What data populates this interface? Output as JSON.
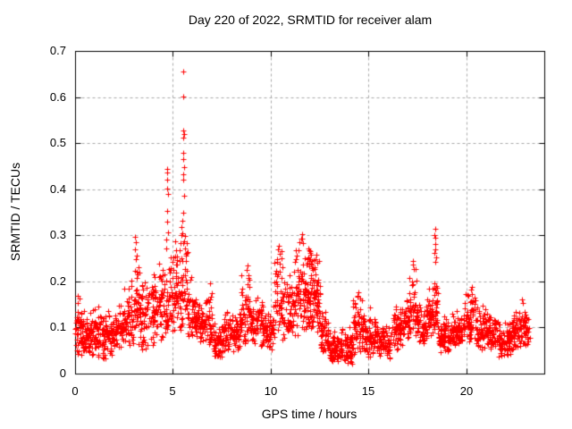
{
  "chart_data": {
    "type": "scatter",
    "title": "Day 220 of 2022, SRMTID for receiver alam",
    "xlabel": "GPS time / hours",
    "ylabel": "SRMTID / TECUs",
    "xlim": [
      0,
      24
    ],
    "ylim": [
      0,
      0.7
    ],
    "xticks": [
      0,
      5,
      10,
      15,
      20
    ],
    "xticklabels": [
      "0",
      "5",
      "10",
      "15",
      "20"
    ],
    "yticks": [
      0,
      0.1,
      0.2,
      0.3,
      0.4,
      0.5,
      0.6,
      0.7
    ],
    "yticklabels": [
      "0",
      "0.1",
      "0.2",
      "0.3",
      "0.4",
      "0.5",
      "0.6",
      "0.7"
    ],
    "grid": true,
    "grid_style": "dashed",
    "grid_color": "#a8a8a8",
    "border_color": "#000000",
    "background_color": "#ffffff",
    "legend": "none",
    "marker": "plus",
    "marker_color": "#ff0000",
    "marker_size_px": 7,
    "x_data_range": [
      0,
      23.25
    ],
    "notable_peaks": [
      {
        "t": 5.5,
        "v": 0.655
      },
      {
        "t": 18.4,
        "v": 0.315
      },
      {
        "t": 11.6,
        "v": 0.303
      },
      {
        "t": 3.1,
        "v": 0.296
      },
      {
        "t": 10.4,
        "v": 0.278
      },
      {
        "t": 12.0,
        "v": 0.272
      },
      {
        "t": 4.7,
        "v": 0.445
      },
      {
        "t": 17.3,
        "v": 0.245
      },
      {
        "t": 8.8,
        "v": 0.235
      }
    ],
    "seed": 20220811,
    "clusters": [
      [
        0.0,
        0.5,
        60,
        0.04,
        0.165
      ],
      [
        0.5,
        1.0,
        60,
        0.035,
        0.155
      ],
      [
        1.0,
        1.5,
        55,
        0.03,
        0.15
      ],
      [
        1.5,
        2.0,
        55,
        0.03,
        0.15
      ],
      [
        2.0,
        2.5,
        55,
        0.045,
        0.16
      ],
      [
        2.5,
        3.0,
        55,
        0.05,
        0.2
      ],
      [
        3.0,
        3.3,
        40,
        0.06,
        0.25
      ],
      [
        3.3,
        3.7,
        45,
        0.05,
        0.21
      ],
      [
        3.7,
        4.2,
        55,
        0.06,
        0.235
      ],
      [
        4.2,
        4.7,
        55,
        0.07,
        0.25
      ],
      [
        4.7,
        5.1,
        48,
        0.08,
        0.27
      ],
      [
        5.1,
        5.45,
        42,
        0.09,
        0.3
      ],
      [
        5.45,
        5.75,
        34,
        0.1,
        0.3
      ],
      [
        5.75,
        6.2,
        50,
        0.07,
        0.21
      ],
      [
        6.2,
        6.7,
        55,
        0.06,
        0.175
      ],
      [
        6.7,
        7.0,
        35,
        0.06,
        0.195
      ],
      [
        7.0,
        7.6,
        65,
        0.03,
        0.12
      ],
      [
        7.6,
        8.4,
        85,
        0.045,
        0.15
      ],
      [
        8.4,
        9.0,
        65,
        0.06,
        0.23
      ],
      [
        9.0,
        9.6,
        65,
        0.05,
        0.175
      ],
      [
        9.6,
        10.2,
        65,
        0.05,
        0.15
      ],
      [
        10.2,
        10.6,
        45,
        0.07,
        0.28
      ],
      [
        10.6,
        11.2,
        65,
        0.06,
        0.22
      ],
      [
        11.2,
        11.7,
        55,
        0.08,
        0.3
      ],
      [
        11.7,
        12.2,
        75,
        0.09,
        0.275
      ],
      [
        12.2,
        12.55,
        50,
        0.08,
        0.26
      ],
      [
        12.55,
        13.0,
        50,
        0.04,
        0.15
      ],
      [
        13.0,
        13.6,
        65,
        0.025,
        0.095
      ],
      [
        13.6,
        14.2,
        65,
        0.02,
        0.11
      ],
      [
        14.2,
        14.8,
        65,
        0.04,
        0.175
      ],
      [
        14.8,
        15.4,
        65,
        0.035,
        0.145
      ],
      [
        15.4,
        16.2,
        80,
        0.03,
        0.12
      ],
      [
        16.2,
        16.8,
        65,
        0.05,
        0.155
      ],
      [
        16.8,
        17.1,
        35,
        0.06,
        0.18
      ],
      [
        17.1,
        17.5,
        48,
        0.08,
        0.245
      ],
      [
        17.5,
        18.0,
        55,
        0.06,
        0.16
      ],
      [
        18.0,
        18.35,
        42,
        0.08,
        0.2
      ],
      [
        18.35,
        18.55,
        26,
        0.09,
        0.2
      ],
      [
        18.55,
        19.2,
        70,
        0.045,
        0.13
      ],
      [
        19.2,
        19.9,
        75,
        0.05,
        0.145
      ],
      [
        19.9,
        20.5,
        65,
        0.06,
        0.19
      ],
      [
        20.5,
        21.1,
        65,
        0.05,
        0.16
      ],
      [
        21.1,
        21.6,
        55,
        0.045,
        0.13
      ],
      [
        21.6,
        22.3,
        75,
        0.035,
        0.12
      ],
      [
        22.3,
        22.8,
        55,
        0.05,
        0.15
      ],
      [
        22.8,
        23.1,
        35,
        0.055,
        0.16
      ],
      [
        23.1,
        23.25,
        12,
        0.06,
        0.13
      ]
    ],
    "outliers": [
      [
        5.52,
        0.655
      ],
      [
        5.55,
        0.602
      ],
      [
        5.53,
        0.528
      ],
      [
        5.56,
        0.52
      ],
      [
        5.54,
        0.512
      ],
      [
        5.55,
        0.478
      ],
      [
        5.53,
        0.465
      ],
      [
        5.56,
        0.447
      ],
      [
        5.54,
        0.432
      ],
      [
        5.52,
        0.42
      ],
      [
        5.57,
        0.385
      ],
      [
        5.55,
        0.35
      ],
      [
        5.5,
        0.332
      ],
      [
        5.46,
        0.318
      ],
      [
        5.48,
        0.305
      ],
      [
        5.6,
        0.298
      ],
      [
        5.58,
        0.287
      ],
      [
        5.42,
        0.3
      ],
      [
        5.38,
        0.283
      ],
      [
        5.35,
        0.268
      ],
      [
        5.62,
        0.272
      ],
      [
        5.65,
        0.255
      ],
      [
        4.72,
        0.445
      ],
      [
        4.7,
        0.436
      ],
      [
        4.73,
        0.42
      ],
      [
        4.71,
        0.401
      ],
      [
        4.74,
        0.39
      ],
      [
        4.7,
        0.352
      ],
      [
        4.72,
        0.33
      ],
      [
        4.75,
        0.306
      ],
      [
        4.68,
        0.29
      ],
      [
        4.66,
        0.272
      ],
      [
        3.08,
        0.296
      ],
      [
        3.12,
        0.285
      ],
      [
        3.05,
        0.27
      ],
      [
        3.15,
        0.256
      ],
      [
        3.1,
        0.248
      ],
      [
        10.42,
        0.278
      ],
      [
        10.38,
        0.27
      ],
      [
        10.45,
        0.26
      ],
      [
        10.35,
        0.248
      ],
      [
        11.62,
        0.303
      ],
      [
        11.58,
        0.292
      ],
      [
        11.65,
        0.284
      ],
      [
        11.42,
        0.268
      ],
      [
        11.35,
        0.255
      ],
      [
        11.92,
        0.272
      ],
      [
        11.96,
        0.268
      ],
      [
        12.0,
        0.265
      ],
      [
        12.04,
        0.262
      ],
      [
        12.08,
        0.258
      ],
      [
        11.95,
        0.252
      ],
      [
        12.02,
        0.248
      ],
      [
        12.1,
        0.244
      ],
      [
        11.9,
        0.24
      ],
      [
        12.06,
        0.236
      ],
      [
        11.98,
        0.232
      ],
      [
        12.12,
        0.228
      ],
      [
        12.32,
        0.258
      ],
      [
        12.28,
        0.248
      ],
      [
        12.38,
        0.24
      ],
      [
        8.82,
        0.235
      ],
      [
        8.78,
        0.225
      ],
      [
        8.85,
        0.214
      ],
      [
        14.5,
        0.176
      ],
      [
        14.45,
        0.168
      ],
      [
        17.3,
        0.245
      ],
      [
        17.27,
        0.236
      ],
      [
        17.33,
        0.226
      ],
      [
        18.42,
        0.315
      ],
      [
        18.4,
        0.3
      ],
      [
        18.44,
        0.294
      ],
      [
        18.41,
        0.281
      ],
      [
        18.43,
        0.27
      ],
      [
        18.4,
        0.262
      ],
      [
        18.45,
        0.252
      ],
      [
        18.42,
        0.242
      ],
      [
        18.38,
        0.196
      ],
      [
        18.46,
        0.19
      ],
      [
        20.3,
        0.188
      ],
      [
        20.26,
        0.182
      ],
      [
        5.92,
        0.21
      ],
      [
        5.88,
        0.204
      ],
      [
        6.9,
        0.196
      ],
      [
        22.85,
        0.16
      ],
      [
        22.9,
        0.154
      ],
      [
        0.15,
        0.168
      ],
      [
        0.22,
        0.162
      ],
      [
        2.9,
        0.202
      ]
    ]
  }
}
